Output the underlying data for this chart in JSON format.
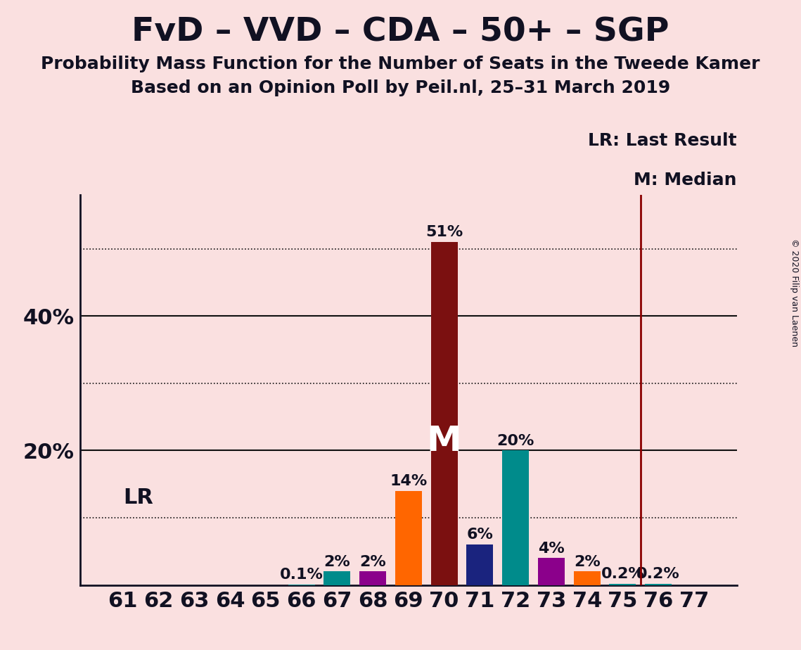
{
  "title": "FvD – VVD – CDA – 50+ – SGP",
  "subtitle1": "Probability Mass Function for the Number of Seats in the Tweede Kamer",
  "subtitle2": "Based on an Opinion Poll by Peil.nl, 25–31 March 2019",
  "copyright": "© 2020 Filip van Laenen",
  "seats": [
    61,
    62,
    63,
    64,
    65,
    66,
    67,
    68,
    69,
    70,
    71,
    72,
    73,
    74,
    75,
    76,
    77
  ],
  "probabilities": [
    0.0,
    0.0,
    0.0,
    0.0,
    0.0,
    0.1,
    2.0,
    2.0,
    14.0,
    51.0,
    6.0,
    20.0,
    4.0,
    2.0,
    0.2,
    0.2,
    0.0
  ],
  "bar_colors": [
    "#008B8B",
    "#008B8B",
    "#008B8B",
    "#008B8B",
    "#008B8B",
    "#008B8B",
    "#008B8B",
    "#8B008B",
    "#FF6600",
    "#7B1010",
    "#1A237E",
    "#008B8B",
    "#8B008B",
    "#FF6600",
    "#008B8B",
    "#008B8B",
    "#008B8B"
  ],
  "labels": [
    "0%",
    "0%",
    "0%",
    "0%",
    "0%",
    "0.1%",
    "2%",
    "2%",
    "14%",
    "51%",
    "6%",
    "20%",
    "4%",
    "2%",
    "0.2%",
    "0.2%",
    "0%"
  ],
  "show_label": [
    false,
    false,
    false,
    false,
    false,
    true,
    true,
    true,
    true,
    true,
    true,
    true,
    true,
    true,
    true,
    true,
    false
  ],
  "median_seat": 70,
  "lr_seat": 75.5,
  "lr_label": "LR",
  "lr_legend": "LR: Last Result",
  "m_legend": "M: Median",
  "background_color": "#FAE0E0",
  "ylim": [
    0,
    58
  ],
  "solid_yticks": [
    20,
    40
  ],
  "dotted_yticks": [
    10,
    30,
    50
  ],
  "grid_color": "#111111",
  "title_fontsize": 34,
  "subtitle_fontsize": 18,
  "axis_tick_fontsize": 22,
  "bar_label_fontsize": 16,
  "median_fontsize": 36,
  "lr_fontsize": 22,
  "legend_fontsize": 18,
  "copyright_fontsize": 9,
  "text_color": "#111122"
}
